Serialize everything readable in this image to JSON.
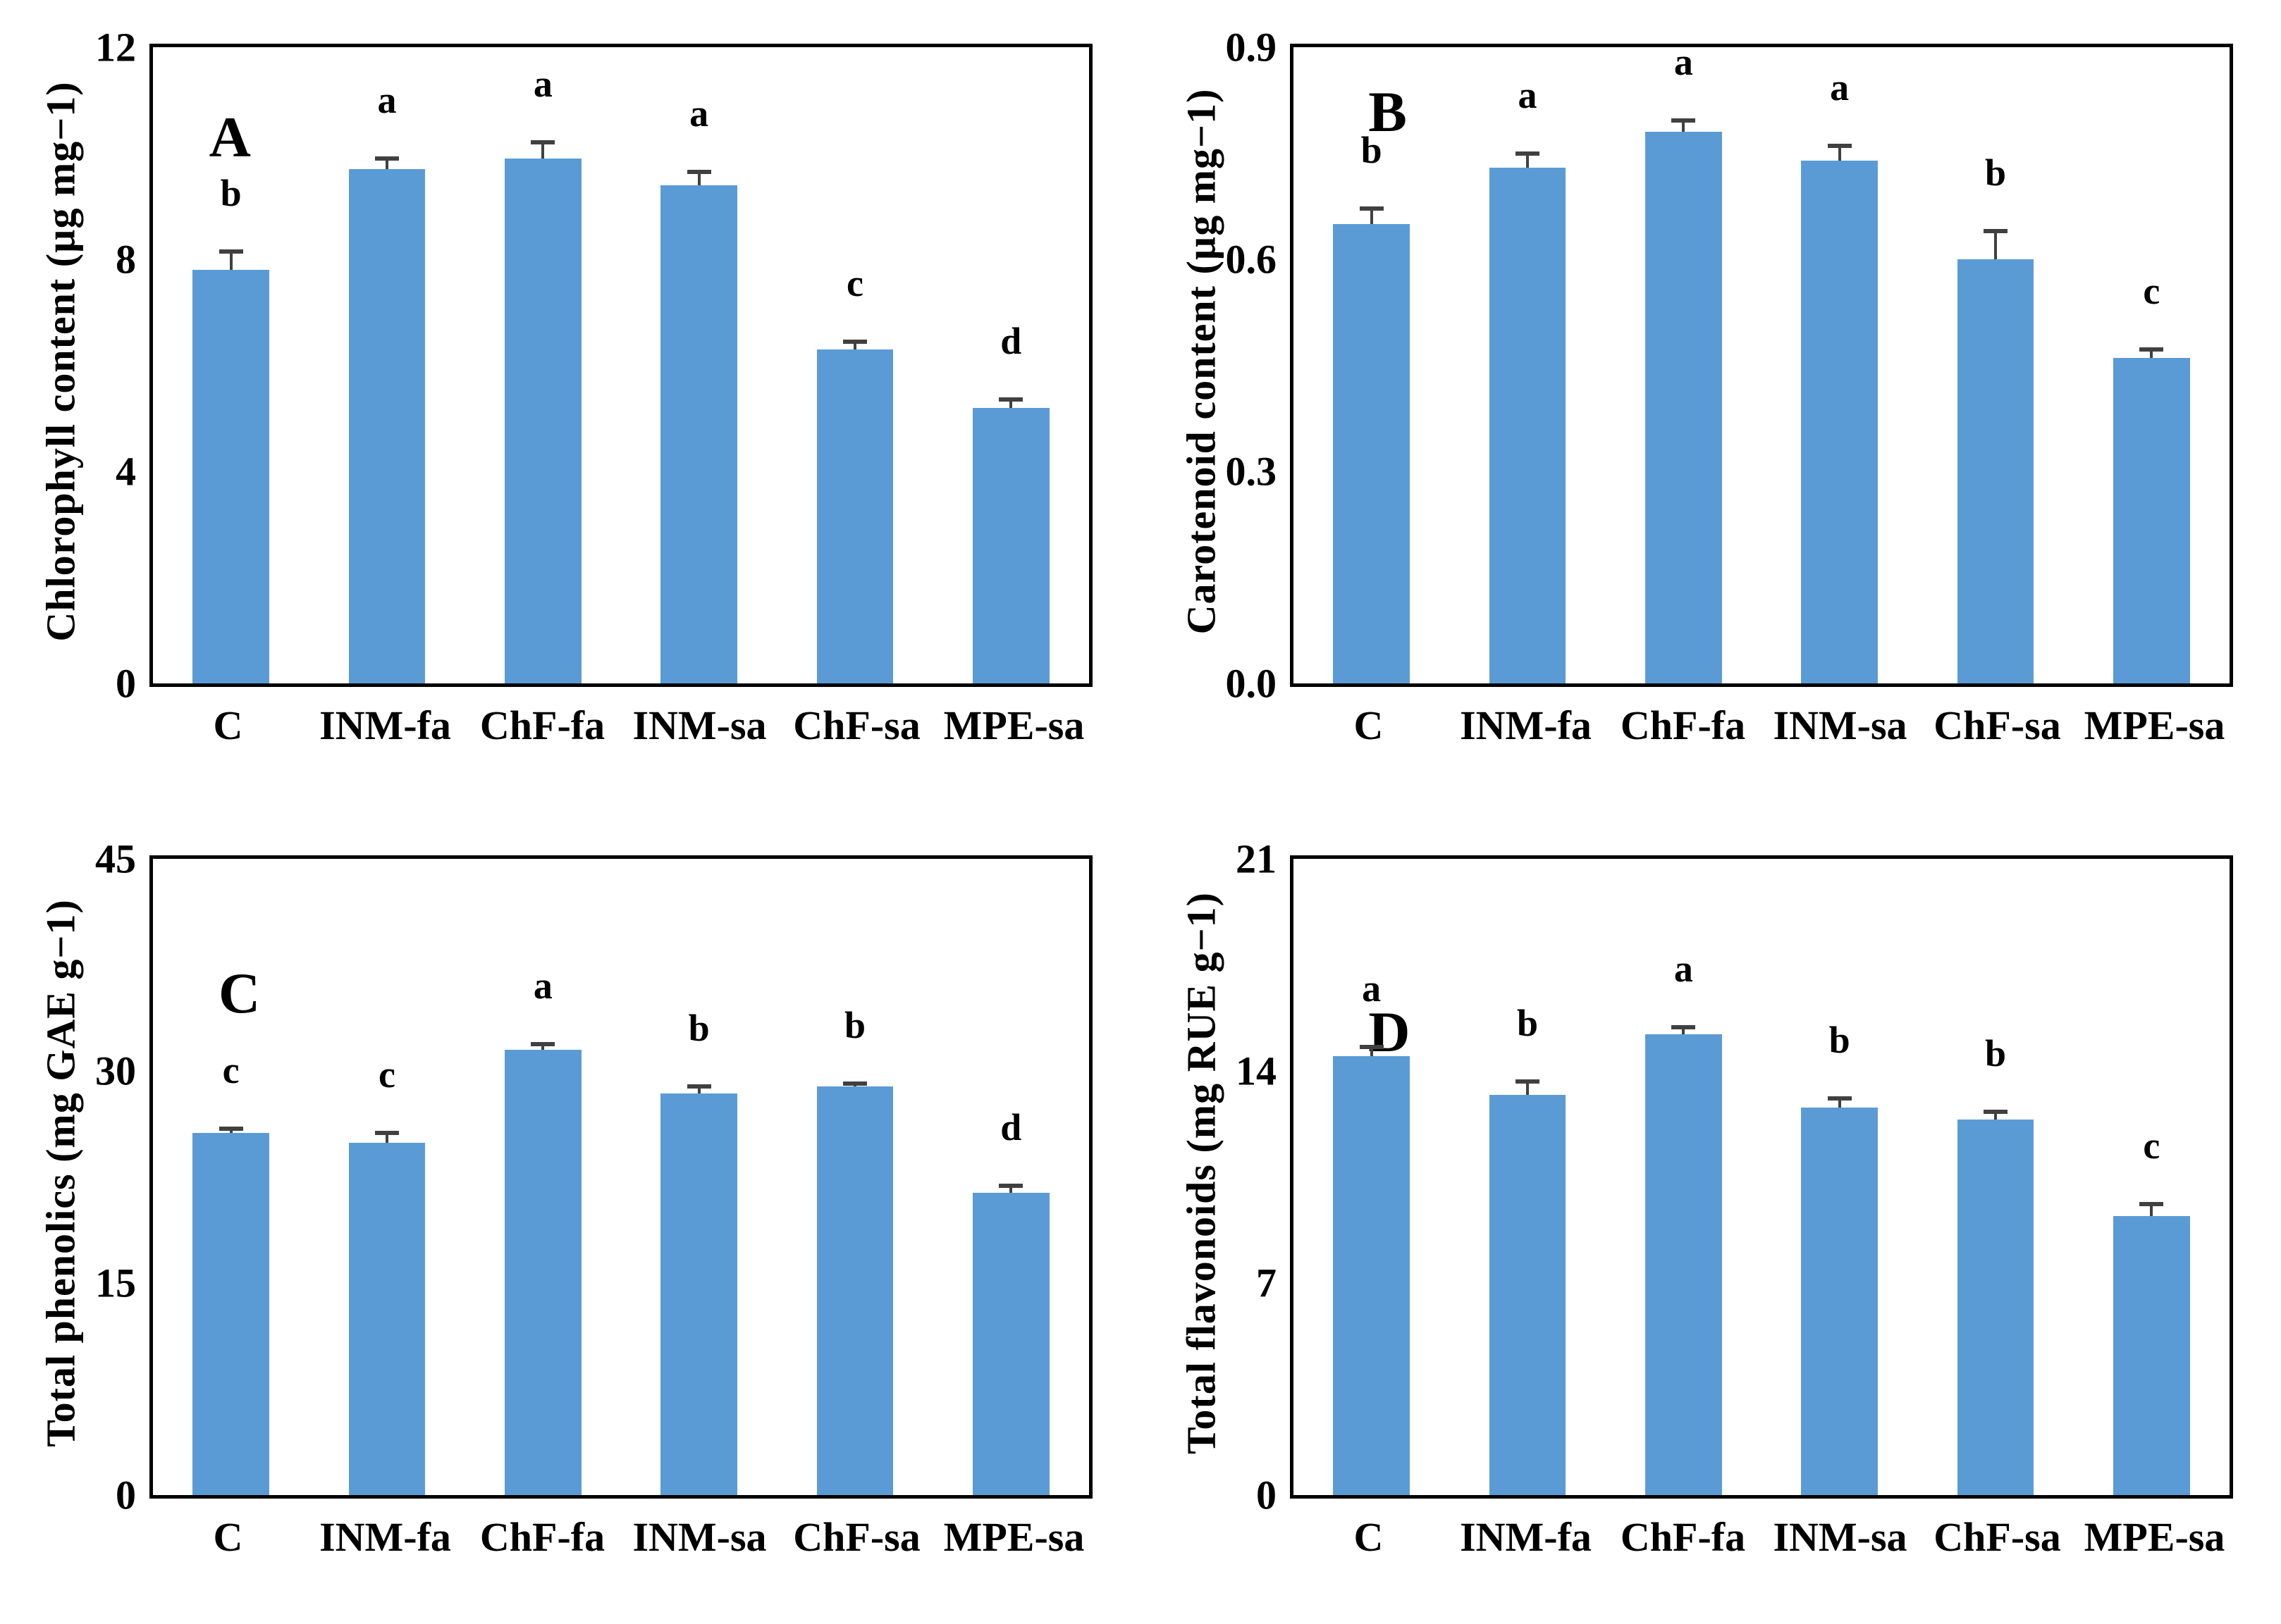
{
  "style": {
    "bar_color": "#5B9BD5",
    "error_color": "#404040",
    "axis_color": "#000000",
    "text_color": "#000000"
  },
  "chart_data": [
    {
      "type": "bar",
      "panel_letter": "A",
      "title": "",
      "xlabel": "",
      "ylabel": "Chlorophyll content (µg mg−1)",
      "ylim": [
        0,
        12
      ],
      "yticks": [
        "0",
        "4",
        "8",
        "12"
      ],
      "grid": false,
      "legend_position": "none",
      "categories": [
        "C",
        "INM-fa",
        "ChF-fa",
        "INM-sa",
        "ChF-sa",
        "MPE-sa"
      ],
      "values": [
        7.8,
        9.7,
        9.9,
        9.4,
        6.3,
        5.2
      ],
      "errors": [
        0.35,
        0.2,
        0.3,
        0.25,
        0.15,
        0.15
      ],
      "letters": [
        "b",
        "a",
        "a",
        "a",
        "c",
        "d"
      ]
    },
    {
      "type": "bar",
      "panel_letter": "B",
      "title": "",
      "xlabel": "",
      "ylabel": "Carotenoid content (µg mg−1)",
      "ylim": [
        0,
        0.9
      ],
      "yticks": [
        "0.0",
        "0.3",
        "0.6",
        "0.9"
      ],
      "grid": false,
      "legend_position": "none",
      "categories": [
        "C",
        "INM-fa",
        "ChF-fa",
        "INM-sa",
        "ChF-sa",
        "MPE-sa"
      ],
      "values": [
        0.65,
        0.73,
        0.78,
        0.74,
        0.6,
        0.46
      ],
      "errors": [
        0.022,
        0.02,
        0.016,
        0.02,
        0.04,
        0.012
      ],
      "letters": [
        "b",
        "a",
        "a",
        "a",
        "b",
        "c"
      ]
    },
    {
      "type": "bar",
      "panel_letter": "C",
      "title": "",
      "xlabel": "",
      "ylabel": "Total phenolics (mg GAE g−1)",
      "ylim": [
        0,
        45
      ],
      "yticks": [
        "0",
        "15",
        "30",
        "45"
      ],
      "grid": false,
      "legend_position": "none",
      "categories": [
        "C",
        "INM-fa",
        "ChF-fa",
        "INM-sa",
        "ChF-sa",
        "MPE-sa"
      ],
      "values": [
        25.6,
        24.9,
        31.5,
        28.4,
        28.9,
        21.4
      ],
      "errors": [
        0.3,
        0.7,
        0.4,
        0.5,
        0.2,
        0.5
      ],
      "letters": [
        "c",
        "c",
        "a",
        "b",
        "b",
        "d"
      ]
    },
    {
      "type": "bar",
      "panel_letter": "D",
      "title": "",
      "xlabel": "",
      "ylabel": "Total flavonoids (mg RUE g−1)",
      "ylim": [
        0,
        21
      ],
      "yticks": [
        "0",
        "7",
        "14",
        "21"
      ],
      "grid": false,
      "legend_position": "none",
      "categories": [
        "C",
        "INM-fa",
        "ChF-fa",
        "INM-sa",
        "ChF-sa",
        "MPE-sa"
      ],
      "values": [
        14.5,
        13.2,
        15.2,
        12.8,
        12.4,
        9.2
      ],
      "errors": [
        0.3,
        0.45,
        0.25,
        0.3,
        0.25,
        0.4
      ],
      "letters": [
        "a",
        "b",
        "a",
        "b",
        "b",
        "c"
      ]
    }
  ]
}
